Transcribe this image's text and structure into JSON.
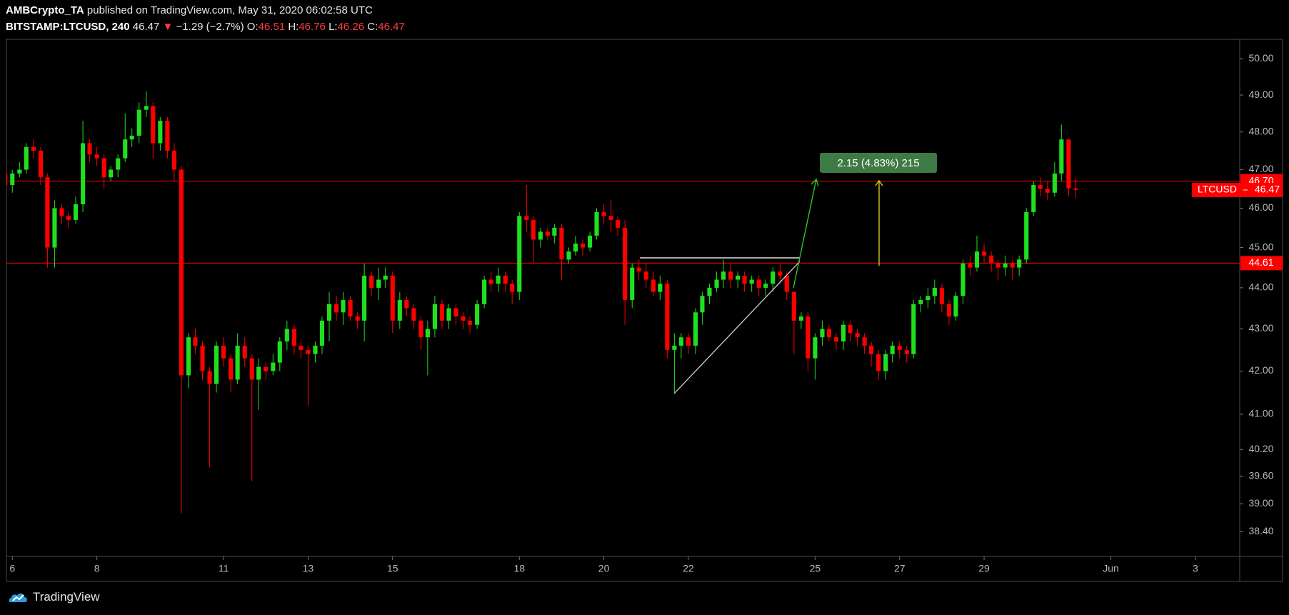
{
  "header": {
    "author": "AMBCrypto_TA",
    "published": "published on TradingView.com, May 31, 2020 06:02:58 UTC",
    "symbol": "BITSTAMP:LTCUSD, 240",
    "arrow": "▼",
    "change": "−1.29 (−2.7%)",
    "o_label": "O:",
    "h_label": "H:",
    "l_label": "L:",
    "c_label": "C:"
  },
  "chart_data": {
    "type": "candlestick",
    "yscale": "log",
    "grid": false,
    "up_color": "#1fe01f",
    "down_color": "#ff0000",
    "xlim": [
      5.86,
      35.05
    ],
    "ylim": [
      37.87,
      50.55
    ],
    "xticks": [
      6,
      8,
      11,
      13,
      15,
      18,
      20,
      22,
      25,
      27,
      29,
      {
        "value": 32,
        "label": "Jun"
      },
      {
        "value": 34,
        "label": "3"
      }
    ],
    "yticks": [
      {
        "value": 50,
        "label": "50.00"
      },
      {
        "value": 49,
        "label": "49.00"
      },
      {
        "value": 48,
        "label": "48.00"
      },
      {
        "value": 47,
        "label": "47.00"
      },
      {
        "value": 46,
        "label": "46.00"
      },
      {
        "value": 45,
        "label": "45.00"
      },
      {
        "value": 44,
        "label": "44.00"
      },
      {
        "value": 43,
        "label": "43.00"
      },
      {
        "value": 42,
        "label": "42.00"
      },
      {
        "value": 41,
        "label": "41.00"
      },
      {
        "value": 40.2,
        "label": "40.20"
      },
      {
        "value": 39.6,
        "label": "39.60"
      },
      {
        "value": 39,
        "label": "39.00"
      },
      {
        "value": 38.4,
        "label": "38.40"
      }
    ],
    "hlines": [
      {
        "value": 46.7,
        "label": "46.70",
        "color": "#ff0000"
      },
      {
        "value": 44.61,
        "color": "#ff0000"
      }
    ],
    "annotation": "2.15 (4.83%) 215",
    "x": [
      5.83,
      6,
      6.17,
      6.33,
      6.5,
      6.67,
      6.83,
      7,
      7.17,
      7.33,
      7.5,
      7.67,
      7.83,
      8,
      8.17,
      8.33,
      8.5,
      8.67,
      8.83,
      9,
      9.17,
      9.33,
      9.5,
      9.67,
      9.83,
      10,
      10.17,
      10.33,
      10.5,
      10.67,
      10.83,
      11,
      11.17,
      11.33,
      11.5,
      11.67,
      11.83,
      12,
      12.17,
      12.33,
      12.5,
      12.67,
      12.83,
      13,
      13.17,
      13.33,
      13.5,
      13.67,
      13.83,
      14,
      14.17,
      14.33,
      14.5,
      14.67,
      14.83,
      15,
      15.17,
      15.33,
      15.5,
      15.67,
      15.83,
      16,
      16.17,
      16.33,
      16.5,
      16.67,
      16.83,
      17,
      17.17,
      17.33,
      17.5,
      17.67,
      17.83,
      18,
      18.17,
      18.33,
      18.5,
      18.67,
      18.83,
      19,
      19.17,
      19.33,
      19.5,
      19.67,
      19.83,
      20,
      20.17,
      20.33,
      20.5,
      20.67,
      20.83,
      21,
      21.17,
      21.33,
      21.5,
      21.67,
      21.83,
      22,
      22.17,
      22.33,
      22.5,
      22.67,
      22.83,
      23,
      23.17,
      23.33,
      23.5,
      23.67,
      23.83,
      24,
      24.17,
      24.33,
      24.5,
      24.67,
      24.83,
      25,
      25.17,
      25.33,
      25.5,
      25.67,
      25.83,
      26,
      26.17,
      26.33,
      26.5,
      26.67,
      26.83,
      27,
      27.17,
      27.33,
      27.5,
      27.67,
      27.83,
      28,
      28.17,
      28.33,
      28.5,
      28.67,
      28.83,
      29,
      29.17,
      29.33,
      29.5,
      29.67,
      29.83,
      30,
      30.17,
      30.33,
      30.5,
      30.67,
      30.83,
      31,
      31.17
    ],
    "series": [
      {
        "name": "LTCUSD",
        "open": [
          46.9,
          46.6,
          46.9,
          47.0,
          47.6,
          47.5,
          46.8,
          45.0,
          46.0,
          45.8,
          45.7,
          46.1,
          47.7,
          47.4,
          47.3,
          46.8,
          47.0,
          47.3,
          47.8,
          47.9,
          48.6,
          48.7,
          47.7,
          48.3,
          47.5,
          47.0,
          41.9,
          42.8,
          42.6,
          42.0,
          41.7,
          42.6,
          42.3,
          41.8,
          42.6,
          42.3,
          41.8,
          42.1,
          42.0,
          42.2,
          42.7,
          43.0,
          42.6,
          42.5,
          42.4,
          42.6,
          43.2,
          43.6,
          43.4,
          43.7,
          43.3,
          43.2,
          44.3,
          44.0,
          44.2,
          44.3,
          43.2,
          43.7,
          43.5,
          43.2,
          42.8,
          43.0,
          43.6,
          43.2,
          43.5,
          43.3,
          43.2,
          43.1,
          43.6,
          44.2,
          44.1,
          44.3,
          44.1,
          43.9,
          45.8,
          45.7,
          45.2,
          45.4,
          45.3,
          45.5,
          44.7,
          44.9,
          45.1,
          45.0,
          45.3,
          45.9,
          45.8,
          45.7,
          45.5,
          43.7,
          44.5,
          44.4,
          44.2,
          43.9,
          44.1,
          42.5,
          42.6,
          42.8,
          42.6,
          43.4,
          43.8,
          44.0,
          44.2,
          44.4,
          44.2,
          44.3,
          44.1,
          44.2,
          44.0,
          44.1,
          44.4,
          44.3,
          43.9,
          43.2,
          43.3,
          42.3,
          42.8,
          43.0,
          42.8,
          42.7,
          43.1,
          42.9,
          42.8,
          42.6,
          42.4,
          42.0,
          42.4,
          42.6,
          42.5,
          42.4,
          43.6,
          43.7,
          43.8,
          44.0,
          43.6,
          43.3,
          43.8,
          44.6,
          44.5,
          44.9,
          44.8,
          44.6,
          44.5,
          44.6,
          44.5,
          44.7,
          45.9,
          46.6,
          46.5,
          46.4,
          46.9,
          47.8,
          46.51
        ],
        "high": [
          47.1,
          47.0,
          47.2,
          47.7,
          47.8,
          47.6,
          46.9,
          46.2,
          46.1,
          45.9,
          46.3,
          48.3,
          47.8,
          47.6,
          47.4,
          47.1,
          47.4,
          48.5,
          48.1,
          48.8,
          49.1,
          48.8,
          48.4,
          48.4,
          47.7,
          47.1,
          42.9,
          43.0,
          42.7,
          42.1,
          42.7,
          42.8,
          42.4,
          42.9,
          42.8,
          42.4,
          42.3,
          42.2,
          42.4,
          42.8,
          43.2,
          43.1,
          42.7,
          42.6,
          42.7,
          43.3,
          43.9,
          43.8,
          43.9,
          43.8,
          43.4,
          44.6,
          44.4,
          44.5,
          44.5,
          44.4,
          43.9,
          43.8,
          43.6,
          43.3,
          43.2,
          43.8,
          43.7,
          43.6,
          43.6,
          43.4,
          43.3,
          43.7,
          44.3,
          44.4,
          44.5,
          44.4,
          44.2,
          45.9,
          46.6,
          45.8,
          45.5,
          45.5,
          45.6,
          45.6,
          45.0,
          45.3,
          45.2,
          45.4,
          46.0,
          46.1,
          46.2,
          45.8,
          45.7,
          44.6,
          44.7,
          44.6,
          44.4,
          44.3,
          44.2,
          42.9,
          42.9,
          42.9,
          43.5,
          43.9,
          44.1,
          44.4,
          44.7,
          44.6,
          44.4,
          44.4,
          44.3,
          44.3,
          44.2,
          44.5,
          44.6,
          44.4,
          43.9,
          43.4,
          43.4,
          42.9,
          43.2,
          43.1,
          42.9,
          43.2,
          43.2,
          43.0,
          42.9,
          42.7,
          42.5,
          42.5,
          42.7,
          42.7,
          42.6,
          43.7,
          43.8,
          44.0,
          44.2,
          44.1,
          43.7,
          43.9,
          44.7,
          44.8,
          45.3,
          45.1,
          44.9,
          44.7,
          44.8,
          44.7,
          44.8,
          46.0,
          46.7,
          46.8,
          46.7,
          47.2,
          48.2,
          47.8,
          46.76
        ],
        "low": [
          46.4,
          46.4,
          46.8,
          46.9,
          47.3,
          46.6,
          44.5,
          44.5,
          45.6,
          45.5,
          45.6,
          45.9,
          47.2,
          47.1,
          46.5,
          46.7,
          46.8,
          47.2,
          47.6,
          47.7,
          48.4,
          47.3,
          47.5,
          47.3,
          46.7,
          38.8,
          41.6,
          42.4,
          41.8,
          39.8,
          41.5,
          42.1,
          41.5,
          41.7,
          42.1,
          39.5,
          41.1,
          41.8,
          41.9,
          42.0,
          42.5,
          42.4,
          42.3,
          41.2,
          42.2,
          42.4,
          42.7,
          43.2,
          43.1,
          43.2,
          43.0,
          42.7,
          43.8,
          43.7,
          44.0,
          42.9,
          43.0,
          43.3,
          43.0,
          42.5,
          41.9,
          42.8,
          43.0,
          43.0,
          43.1,
          43.0,
          42.9,
          43.0,
          43.5,
          43.9,
          43.9,
          43.9,
          43.6,
          43.7,
          45.4,
          44.6,
          45.0,
          45.2,
          45.1,
          44.2,
          44.6,
          44.8,
          44.8,
          44.9,
          45.2,
          45.6,
          45.4,
          45.3,
          43.1,
          43.5,
          44.2,
          44.0,
          43.8,
          43.7,
          42.3,
          41.5,
          42.3,
          42.4,
          42.4,
          43.1,
          43.6,
          43.9,
          44.0,
          44.0,
          44.0,
          43.9,
          43.9,
          43.8,
          43.8,
          43.9,
          44.1,
          43.7,
          42.4,
          43.0,
          42.0,
          41.8,
          42.6,
          42.7,
          42.5,
          42.5,
          42.7,
          42.6,
          42.4,
          42.1,
          41.8,
          41.8,
          42.2,
          42.3,
          42.2,
          42.3,
          43.4,
          43.5,
          43.6,
          43.4,
          43.1,
          43.2,
          43.6,
          44.3,
          44.4,
          44.6,
          44.4,
          44.2,
          44.3,
          44.2,
          44.3,
          44.6,
          45.8,
          46.3,
          46.2,
          46.3,
          46.7,
          46.3,
          46.26
        ],
        "close": [
          46.6,
          46.9,
          47.0,
          47.6,
          47.5,
          46.8,
          45.0,
          46.0,
          45.8,
          45.7,
          46.1,
          47.7,
          47.4,
          47.3,
          46.8,
          47.0,
          47.3,
          47.8,
          47.9,
          48.6,
          48.7,
          47.7,
          48.3,
          47.5,
          47.0,
          41.9,
          42.8,
          42.6,
          42.0,
          41.7,
          42.6,
          42.3,
          41.8,
          42.6,
          42.3,
          41.8,
          42.1,
          42.0,
          42.2,
          42.7,
          43.0,
          42.6,
          42.5,
          42.4,
          42.6,
          43.2,
          43.6,
          43.4,
          43.7,
          43.3,
          43.2,
          44.3,
          44.0,
          44.2,
          44.3,
          43.2,
          43.7,
          43.5,
          43.2,
          42.8,
          43.0,
          43.6,
          43.2,
          43.5,
          43.3,
          43.2,
          43.1,
          43.6,
          44.2,
          44.1,
          44.3,
          44.1,
          43.9,
          45.8,
          45.7,
          45.2,
          45.4,
          45.3,
          45.5,
          44.7,
          44.9,
          45.1,
          45.0,
          45.3,
          45.9,
          45.8,
          45.7,
          45.5,
          43.7,
          44.5,
          44.4,
          44.2,
          43.9,
          44.1,
          42.5,
          42.6,
          42.8,
          42.6,
          43.4,
          43.8,
          44.0,
          44.2,
          44.4,
          44.2,
          44.3,
          44.1,
          44.2,
          44.0,
          44.1,
          44.4,
          44.3,
          43.9,
          43.2,
          43.3,
          42.3,
          42.8,
          43.0,
          42.8,
          42.7,
          43.1,
          42.9,
          42.8,
          42.6,
          42.4,
          42.0,
          42.4,
          42.6,
          42.5,
          42.4,
          43.6,
          43.7,
          43.8,
          44.0,
          43.6,
          43.3,
          43.8,
          44.6,
          44.5,
          44.9,
          44.8,
          44.6,
          44.5,
          44.6,
          44.5,
          44.7,
          45.9,
          46.6,
          46.5,
          46.4,
          46.9,
          47.8,
          46.51,
          46.47
        ]
      }
    ]
  },
  "footer": {
    "brand": "TradingView"
  }
}
